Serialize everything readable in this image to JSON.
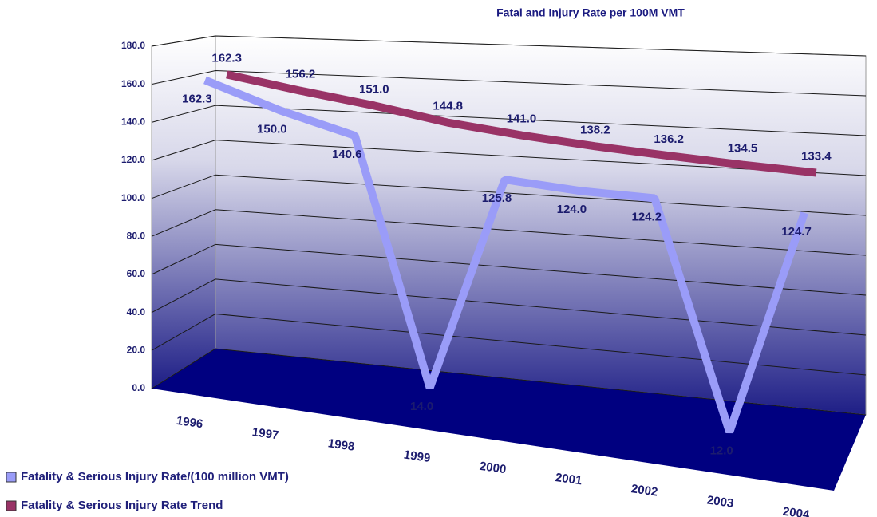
{
  "chart_data": {
    "type": "line",
    "title": "Fatal and Injury Rate per 100M VMT",
    "categories": [
      "1996",
      "1997",
      "1998",
      "1999",
      "2000",
      "2001",
      "2002",
      "2003",
      "2004"
    ],
    "series": [
      {
        "name": "Fatality & Serious Injury Rate/(100 million VMT)",
        "color": "#9a9cf8",
        "values": [
          162.3,
          150.0,
          140.6,
          14.0,
          125.8,
          124.0,
          124.2,
          12.0,
          124.7
        ],
        "value_labels": [
          "162.3",
          "150.0",
          "140.6",
          "14.0",
          "125.8",
          "124.0",
          "124.2",
          "12.0",
          "124.7"
        ]
      },
      {
        "name": "Fatality & Serious Injury Rate Trend",
        "color": "#993366",
        "values": [
          162.3,
          156.2,
          151.0,
          144.8,
          141.0,
          138.2,
          136.2,
          134.5,
          133.4
        ],
        "value_labels": [
          "162.3",
          "156.2",
          "151.0",
          "144.8",
          "141.0",
          "138.2",
          "136.2",
          "134.5",
          "133.4"
        ]
      }
    ],
    "ylim": [
      0,
      180
    ],
    "yticks": [
      {
        "value": 0,
        "label": "0.0"
      },
      {
        "value": 20,
        "label": "20.0"
      },
      {
        "value": 40,
        "label": "40.0"
      },
      {
        "value": 60,
        "label": "60.0"
      },
      {
        "value": 80,
        "label": "80.0"
      },
      {
        "value": 100,
        "label": "100.0"
      },
      {
        "value": 120,
        "label": "120.0"
      },
      {
        "value": 140,
        "label": "140.0"
      },
      {
        "value": 160,
        "label": "160.0"
      },
      {
        "value": 180,
        "label": "180.0"
      }
    ],
    "grid": true,
    "legend": "bottom-left"
  }
}
